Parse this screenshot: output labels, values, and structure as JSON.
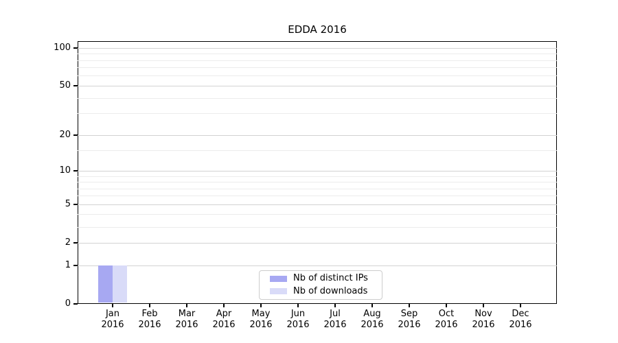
{
  "chart_data": {
    "type": "bar",
    "title": "EDDA 2016",
    "categories": [
      "Jan",
      "Feb",
      "Mar",
      "Apr",
      "May",
      "Jun",
      "Jul",
      "Aug",
      "Sep",
      "Oct",
      "Nov",
      "Dec"
    ],
    "category_year": "2016",
    "series": [
      {
        "name": "Nb of distinct IPs",
        "color": "#a7a8f2",
        "values": [
          1,
          0,
          0,
          0,
          0,
          0,
          0,
          0,
          0,
          0,
          0,
          0
        ]
      },
      {
        "name": "Nb of downloads",
        "color": "#d9dbf8",
        "values": [
          1,
          0,
          0,
          0,
          0,
          0,
          0,
          0,
          0,
          0,
          0,
          0
        ]
      }
    ],
    "y_axis": {
      "scale": "log1p",
      "ticks": [
        0,
        1,
        2,
        5,
        10,
        20,
        50,
        100
      ],
      "minor_ticks": [
        3,
        4,
        6,
        7,
        8,
        9,
        15,
        30,
        40,
        60,
        70,
        80,
        90
      ],
      "range": [
        0,
        110
      ]
    },
    "x_axis": {
      "label_lines": 2
    },
    "legend": {
      "position": "lower center"
    },
    "grid": true
  }
}
